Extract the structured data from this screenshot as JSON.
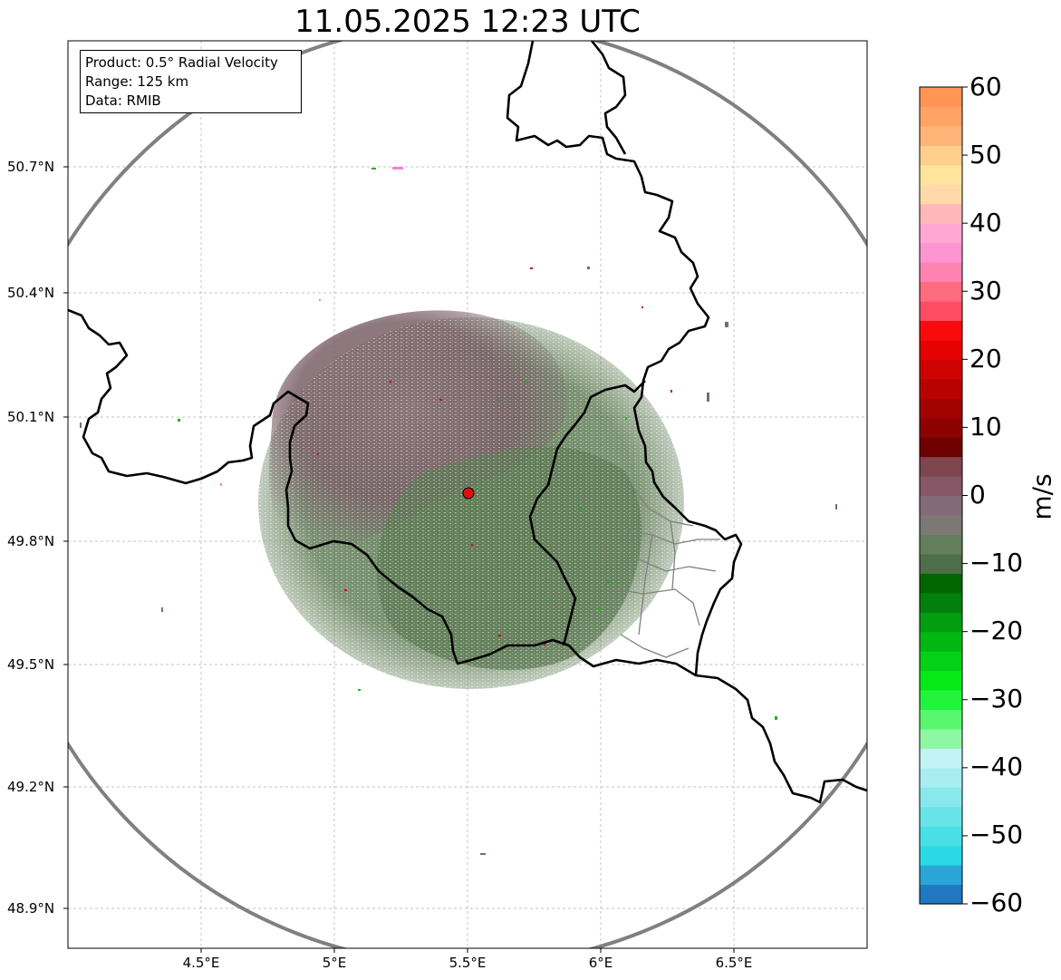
{
  "title": "11.05.2025 12:23 UTC",
  "info": {
    "product": "Product: 0.5° Radial Velocity",
    "range": "Range: 125 km",
    "data": "Data: RMIB"
  },
  "lat_labels": [
    "50.7°N",
    "50.4°N",
    "50.1°N",
    "49.8°N",
    "49.5°N",
    "49.2°N",
    "48.9°N"
  ],
  "lon_labels": [
    "4.5°E",
    "5°E",
    "5.5°E",
    "6°E",
    "6.5°E"
  ],
  "colorbar": {
    "unit": "m/s",
    "min": -60,
    "max": 60,
    "ticks": [
      "60",
      "50",
      "40",
      "30",
      "20",
      "10",
      "0",
      "−10",
      "−20",
      "−30",
      "−40",
      "−50",
      "−60"
    ],
    "colors": [
      "#2077c2",
      "#2aa6d6",
      "#2ad9e3",
      "#48e0e6",
      "#68e4e8",
      "#89e8ec",
      "#a8edf0",
      "#c1f2f4",
      "#8ef7a4",
      "#57f66c",
      "#22f43d",
      "#07e818",
      "#04d015",
      "#03b713",
      "#029e11",
      "#027f0c",
      "#006600",
      "#4e6e49",
      "#637f5d",
      "#7d7874",
      "#846a78",
      "#855767",
      "#7f454f",
      "#6e0000",
      "#8c0202",
      "#a20202",
      "#b80202",
      "#cf0202",
      "#e40202",
      "#f80b0b",
      "#ff4d63",
      "#ff6b7e",
      "#ff83b0",
      "#ff94d3",
      "#ffa9d2",
      "#ffb8b8",
      "#ffd9a8",
      "#ffe49b",
      "#ffcf8d",
      "#ffb578",
      "#ffa465",
      "#ff9554"
    ]
  },
  "map": {
    "radar_site": "5.5°E 49.91°N",
    "range_ring_color": "#808080",
    "border_color": "#000000",
    "admin_border_color": "#808080"
  }
}
